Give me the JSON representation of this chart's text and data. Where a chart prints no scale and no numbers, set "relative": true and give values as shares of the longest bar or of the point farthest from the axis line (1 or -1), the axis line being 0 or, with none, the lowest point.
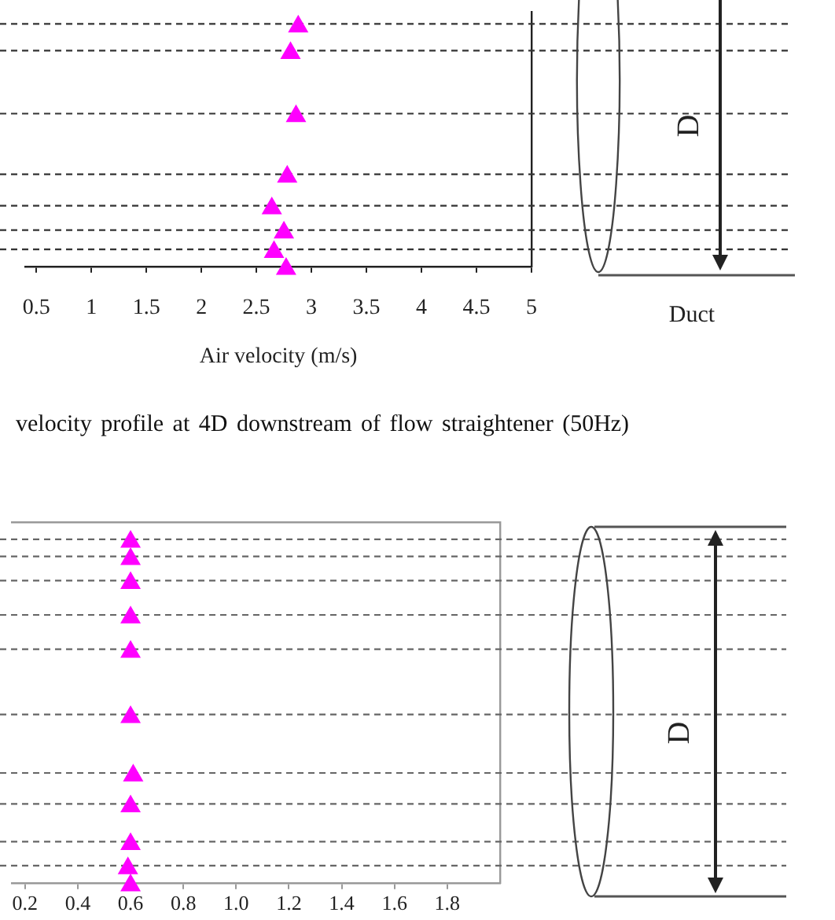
{
  "chart_data": [
    {
      "type": "scatter",
      "title": "velocity profile at 4D downstream of flow straightener (50Hz)",
      "xlabel": "Air velocity (m/s)",
      "relative": true,
      "marker": "triangle",
      "color": "#ff00ff",
      "x": [
        2.88,
        2.81,
        2.86,
        2.78,
        2.64,
        2.75,
        2.66,
        2.77
      ],
      "values": [
        1,
        0.89,
        0.63,
        0.38,
        0.25,
        0.15,
        0.07,
        0
      ],
      "xlim": [
        0.4,
        5
      ],
      "xticks": [
        0.5,
        1,
        1.5,
        2,
        2.5,
        3,
        3.5,
        4,
        4.5,
        5
      ],
      "ref_lines": [
        {
          "axis": "y",
          "value": 1,
          "line_style": "dashed",
          "color": "#333333"
        },
        {
          "axis": "y",
          "value": 0.89,
          "line_style": "dashed",
          "color": "#333333"
        },
        {
          "axis": "y",
          "value": 0.63,
          "line_style": "dashed",
          "color": "#333333"
        },
        {
          "axis": "y",
          "value": 0.38,
          "line_style": "dashed",
          "color": "#333333"
        },
        {
          "axis": "y",
          "value": 0.25,
          "line_style": "dashed",
          "color": "#333333"
        },
        {
          "axis": "y",
          "value": 0.15,
          "line_style": "dashed",
          "color": "#333333"
        },
        {
          "axis": "y",
          "value": 0.07,
          "line_style": "dashed",
          "color": "#333333"
        }
      ],
      "annotations": [
        "D",
        "Duct"
      ]
    },
    {
      "type": "scatter",
      "relative": true,
      "marker": "triangle",
      "color": "#ff00ff",
      "x": [
        0.6,
        0.6,
        0.6,
        0.6,
        0.6,
        0.6,
        0.61,
        0.6,
        0.6,
        0.59,
        0.6
      ],
      "values": [
        1,
        0.95,
        0.88,
        0.78,
        0.68,
        0.49,
        0.32,
        0.23,
        0.12,
        0.05,
        0
      ],
      "xlim": [
        0.15,
        2
      ],
      "xticks": [
        0.2,
        0.4,
        0.6,
        0.8,
        {
          "value": 1,
          "label": "1.0"
        },
        1.2,
        1.4,
        1.6,
        1.8
      ],
      "ref_lines": [
        {
          "axis": "y",
          "value": 1,
          "line_style": "dashed",
          "color": "#666666"
        },
        {
          "axis": "y",
          "value": 0.95,
          "line_style": "dashed",
          "color": "#666666"
        },
        {
          "axis": "y",
          "value": 0.88,
          "line_style": "dashed",
          "color": "#666666"
        },
        {
          "axis": "y",
          "value": 0.78,
          "line_style": "dashed",
          "color": "#666666"
        },
        {
          "axis": "y",
          "value": 0.68,
          "line_style": "dashed",
          "color": "#666666"
        },
        {
          "axis": "y",
          "value": 0.49,
          "line_style": "dashed",
          "color": "#666666"
        },
        {
          "axis": "y",
          "value": 0.32,
          "line_style": "dashed",
          "color": "#666666"
        },
        {
          "axis": "y",
          "value": 0.23,
          "line_style": "dashed",
          "color": "#666666"
        },
        {
          "axis": "y",
          "value": 0.12,
          "line_style": "dashed",
          "color": "#666666"
        },
        {
          "axis": "y",
          "value": 0.05,
          "line_style": "dashed",
          "color": "#666666"
        }
      ],
      "annotations": [
        "D"
      ]
    }
  ]
}
